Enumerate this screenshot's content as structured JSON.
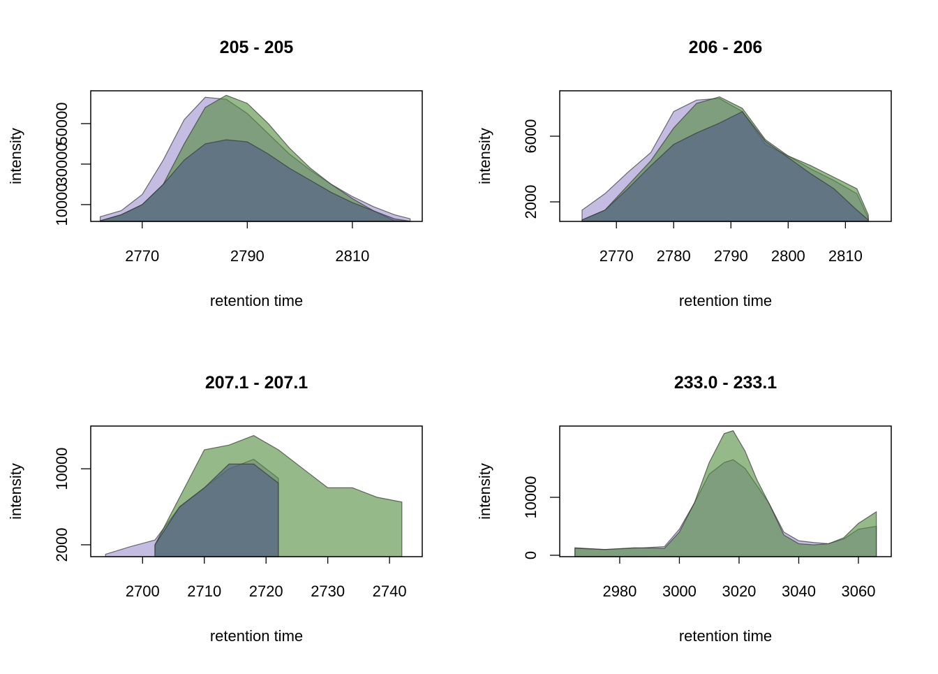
{
  "chart_data": [
    {
      "type": "area",
      "title": "205 - 205",
      "xlabel": "retention time",
      "ylabel": "intensity",
      "x": [
        2762,
        2766,
        2770,
        2774,
        2778,
        2782,
        2786,
        2790,
        2794,
        2798,
        2802,
        2806,
        2810,
        2814,
        2818,
        2821
      ],
      "series": [
        {
          "color": "#9f8fcf",
          "values": [
            4000,
            7000,
            15000,
            32000,
            52000,
            63000,
            62000,
            55000,
            45000,
            35000,
            27000,
            20000,
            14000,
            9000,
            5000,
            3000
          ]
        },
        {
          "color": "#4f8a3a",
          "values": [
            2000,
            5000,
            10000,
            20000,
            40000,
            58000,
            64000,
            60000,
            50000,
            38000,
            28000,
            20000,
            13000,
            7000,
            2000,
            1800
          ]
        },
        {
          "color": "#4f5a85",
          "values": [
            2000,
            5000,
            10000,
            20000,
            32000,
            40000,
            42000,
            41000,
            35000,
            28000,
            22000,
            16000,
            11000,
            7000,
            3000,
            1800
          ]
        }
      ],
      "xlim": [
        2760.2,
        2823.3
      ],
      "ylim": [
        1700,
        66200
      ],
      "xticks": [
        2770,
        2790,
        2810
      ],
      "yticks": [
        10000,
        30000,
        50000
      ]
    },
    {
      "type": "area",
      "title": "206 - 206",
      "xlabel": "retention time",
      "ylabel": "intensity",
      "x": [
        2764,
        2768,
        2772,
        2776,
        2780,
        2784,
        2788,
        2792,
        2796,
        2800,
        2804,
        2808,
        2812,
        2814
      ],
      "series": [
        {
          "color": "#9f8fcf",
          "values": [
            1500,
            2500,
            3800,
            5000,
            7500,
            8200,
            8300,
            7500,
            5500,
            4800,
            4000,
            3300,
            2500,
            1000
          ]
        },
        {
          "color": "#4f8a3a",
          "values": [
            900,
            1500,
            3000,
            4500,
            6500,
            8000,
            8400,
            7700,
            5800,
            4800,
            4200,
            3500,
            2800,
            1200
          ]
        },
        {
          "color": "#4f5a85",
          "values": [
            900,
            1500,
            2800,
            4200,
            5500,
            6200,
            6800,
            7500,
            5700,
            4700,
            3700,
            2800,
            1500,
            900
          ]
        }
      ],
      "xlim": [
        2760.1,
        2818.0
      ],
      "ylim": [
        809,
        8766
      ],
      "xticks": [
        2770,
        2780,
        2790,
        2800,
        2810
      ],
      "yticks": [
        2000,
        6000
      ]
    },
    {
      "type": "area",
      "title": "207.1 - 207.1",
      "xlabel": "retention time",
      "ylabel": "intensity",
      "x": [
        2694,
        2698,
        2702,
        2706,
        2710,
        2714,
        2718,
        2722,
        2726,
        2730,
        2734,
        2738,
        2742
      ],
      "series": [
        {
          "color": "#9f8fcf",
          "values": [
            1000,
            1800,
            2500,
            6000,
            8000,
            10000,
            11000,
            9000,
            null,
            null,
            null,
            null,
            null
          ]
        },
        {
          "color": "#4f8a3a",
          "values": [
            null,
            null,
            2000,
            7000,
            12000,
            12500,
            13500,
            12000,
            10000,
            8000,
            8000,
            7000,
            6500
          ]
        },
        {
          "color": "#4f5a85",
          "values": [
            null,
            null,
            2000,
            6000,
            8000,
            10500,
            10500,
            8500,
            null,
            null,
            null,
            null,
            null
          ]
        }
      ],
      "xlim": [
        2691.6,
        2745.3
      ],
      "ylim": [
        750,
        14500
      ],
      "xticks": [
        2700,
        2710,
        2720,
        2730,
        2740
      ],
      "yticks": [
        2000,
        10000
      ]
    },
    {
      "type": "area",
      "title": "233.0 - 233.1",
      "xlabel": "retention time",
      "ylabel": "intensity",
      "x": [
        2965,
        2975,
        2985,
        2995,
        3000,
        3005,
        3010,
        3015,
        3018,
        3022,
        3026,
        3030,
        3035,
        3040,
        3045,
        3050,
        3055,
        3060,
        3066
      ],
      "series": [
        {
          "color": "#9f8fcf",
          "values": [
            1300,
            1000,
            1200,
            1500,
            4500,
            9000,
            14000,
            16000,
            16500,
            15000,
            12000,
            9000,
            4000,
            2500,
            2200,
            2000,
            2800,
            4500,
            5000
          ]
        },
        {
          "color": "#4f8a3a",
          "values": [
            1200,
            1000,
            1300,
            1200,
            4000,
            9000,
            16000,
            21000,
            21500,
            18000,
            13000,
            9000,
            3500,
            2000,
            1800,
            2000,
            3000,
            5500,
            7500
          ]
        }
      ],
      "xlim": [
        2959.9,
        3071
      ],
      "ylim": [
        -240,
        22300
      ],
      "xticks": [
        2980,
        3000,
        3020,
        3040,
        3060
      ],
      "yticks": [
        0,
        10000
      ]
    }
  ]
}
